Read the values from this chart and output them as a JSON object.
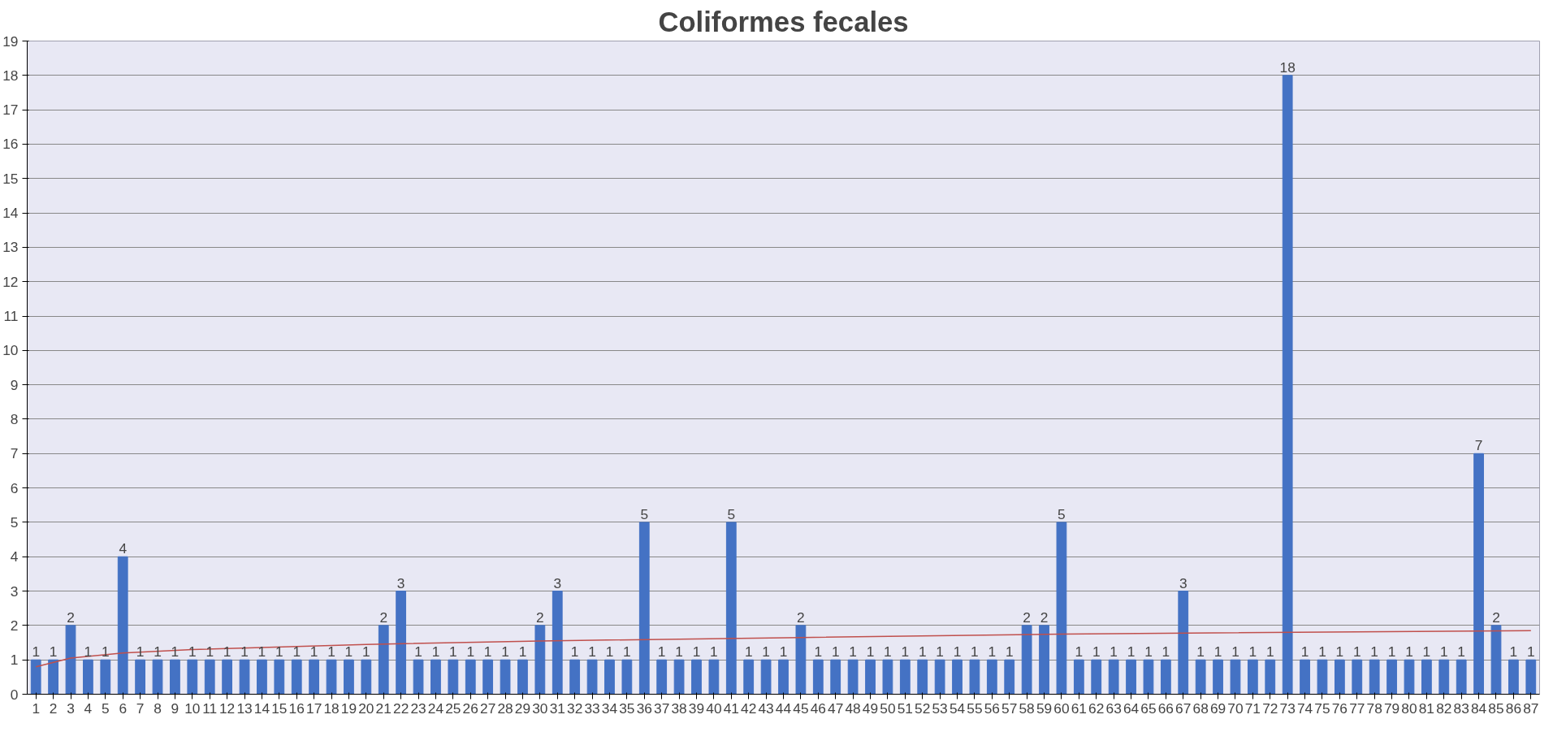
{
  "chart_data": {
    "type": "bar",
    "title": "Coliformes fecales",
    "x": [
      1,
      2,
      3,
      4,
      5,
      6,
      7,
      8,
      9,
      10,
      11,
      12,
      13,
      14,
      15,
      16,
      17,
      18,
      19,
      20,
      21,
      22,
      23,
      24,
      25,
      26,
      27,
      28,
      29,
      30,
      31,
      32,
      33,
      34,
      35,
      36,
      37,
      38,
      39,
      40,
      41,
      42,
      43,
      44,
      45,
      46,
      47,
      48,
      49,
      50,
      51,
      52,
      53,
      54,
      55,
      56,
      57,
      58,
      59,
      60,
      61,
      62,
      63,
      64,
      65,
      66,
      67,
      68,
      69,
      70,
      71,
      72,
      73,
      74,
      75,
      76,
      77,
      78,
      79,
      80,
      81,
      82,
      83,
      84,
      85,
      86,
      87
    ],
    "xlim": [
      0.5,
      87.5
    ],
    "xticks": [
      1,
      2,
      3,
      4,
      5,
      6,
      7,
      8,
      9,
      10,
      11,
      12,
      13,
      14,
      15,
      16,
      17,
      18,
      19,
      20,
      21,
      22,
      23,
      24,
      25,
      26,
      27,
      28,
      29,
      30,
      31,
      32,
      33,
      34,
      35,
      36,
      37,
      38,
      39,
      40,
      41,
      42,
      43,
      44,
      45,
      46,
      47,
      48,
      49,
      50,
      51,
      52,
      53,
      54,
      55,
      56,
      57,
      58,
      59,
      60,
      61,
      62,
      63,
      64,
      65,
      66,
      67,
      68,
      69,
      70,
      71,
      72,
      73,
      74,
      75,
      76,
      77,
      78,
      79,
      80,
      81,
      82,
      83,
      84,
      85,
      86,
      87
    ],
    "ylim": [
      0,
      19
    ],
    "yticks": [
      0,
      1,
      2,
      3,
      4,
      5,
      6,
      7,
      8,
      9,
      10,
      11,
      12,
      13,
      14,
      15,
      16,
      17,
      18,
      19
    ],
    "grid": "y",
    "series": [
      {
        "color": "#4472c4",
        "values": [
          1,
          1,
          2,
          1,
          1,
          4,
          1,
          1,
          1,
          1,
          1,
          1,
          1,
          1,
          1,
          1,
          1,
          1,
          1,
          1,
          2,
          3,
          1,
          1,
          1,
          1,
          1,
          1,
          1,
          2,
          3,
          1,
          1,
          1,
          1,
          5,
          1,
          1,
          1,
          1,
          5,
          1,
          1,
          1,
          2,
          1,
          1,
          1,
          1,
          1,
          1,
          1,
          1,
          1,
          1,
          1,
          1,
          2,
          2,
          5,
          1,
          1,
          1,
          1,
          1,
          1,
          3,
          1,
          1,
          1,
          1,
          1,
          18,
          1,
          1,
          1,
          1,
          1,
          1,
          1,
          1,
          1,
          1,
          7,
          2,
          1,
          1
        ],
        "value_labels": [
          "1",
          "1",
          "2",
          "1",
          "1",
          "4",
          "1",
          "1",
          "1",
          "1",
          "1",
          "1",
          "1",
          "1",
          "1",
          "1",
          "1",
          "1",
          "1",
          "1",
          "2",
          "3",
          "1",
          "1",
          "1",
          "1",
          "1",
          "1",
          "1",
          "2",
          "3",
          "1",
          "1",
          "1",
          "1",
          "5",
          "1",
          "1",
          "1",
          "1",
          "5",
          "1",
          "1",
          "1",
          "2",
          "1",
          "1",
          "1",
          "1",
          "1",
          "1",
          "1",
          "1",
          "1",
          "1",
          "1",
          "1",
          "2",
          "2",
          "5",
          "1",
          "1",
          "1",
          "1",
          "1",
          "1",
          "3",
          "1",
          "1",
          "1",
          "1",
          "1",
          "18",
          "1",
          "1",
          "1",
          "1",
          "1",
          "1",
          "1",
          "1",
          "1",
          "1",
          "7",
          "2",
          "1",
          "1"
        ]
      },
      {
        "type": "line",
        "color": "#c0504d",
        "x": [
          1,
          3,
          6,
          10,
          20,
          30,
          45,
          60,
          87
        ],
        "values": [
          0.8,
          1.05,
          1.2,
          1.3,
          1.45,
          1.55,
          1.65,
          1.75,
          1.85
        ]
      }
    ]
  }
}
